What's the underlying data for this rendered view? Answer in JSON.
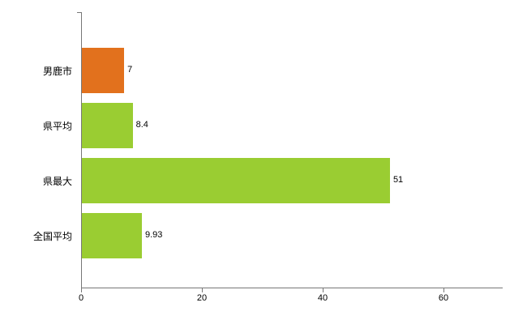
{
  "chart_data": {
    "type": "bar",
    "orientation": "horizontal",
    "title": "",
    "categories": [
      "男鹿市",
      "県平均",
      "県最大",
      "全国平均"
    ],
    "values": [
      7,
      8.4,
      51,
      9.93
    ],
    "value_labels": [
      "7",
      "8.4",
      "51",
      "9.93"
    ],
    "bar_colors": [
      "#e2711d",
      "#9acd32",
      "#9acd32",
      "#9acd32"
    ],
    "xlabel": "",
    "ylabel": "",
    "xlim": [
      0,
      60
    ],
    "xticks": [
      0,
      20,
      40,
      60
    ],
    "grid": false,
    "legend_position": "none"
  },
  "style": {
    "axis_color": "#777777",
    "text_color": "#000000",
    "background": "#ffffff"
  }
}
